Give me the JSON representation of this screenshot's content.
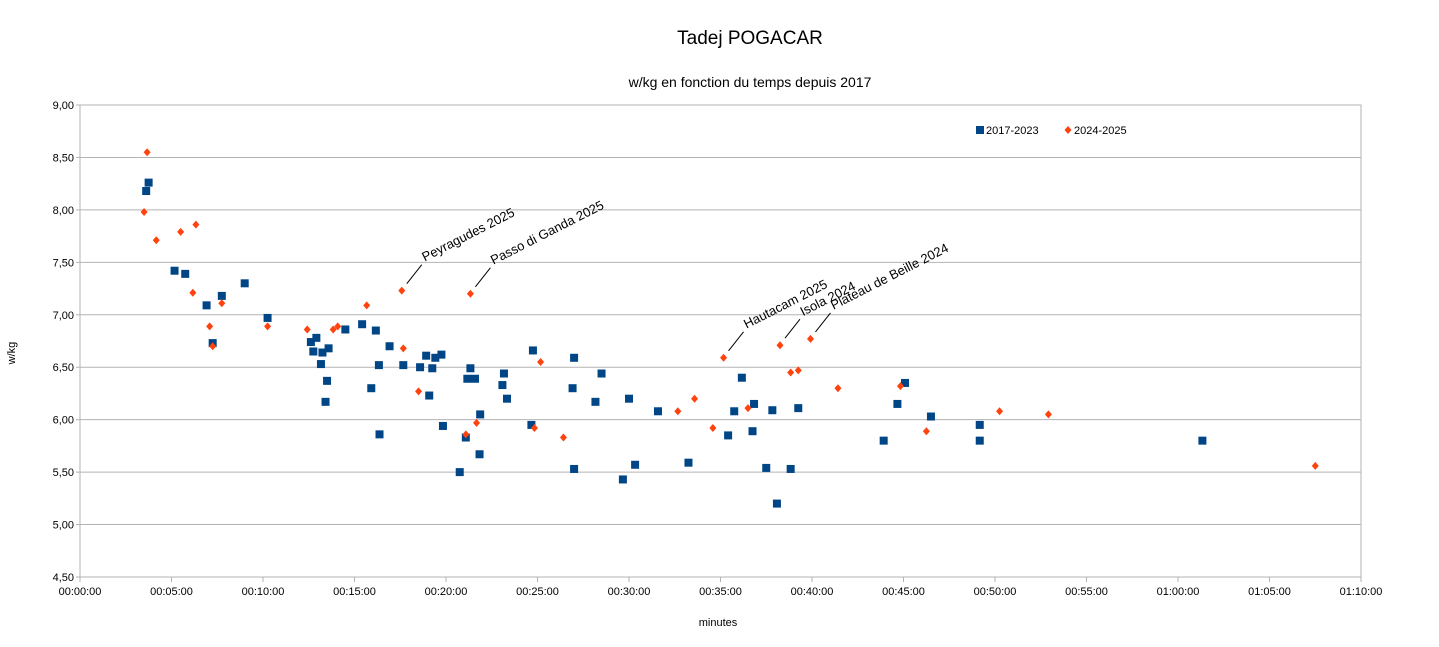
{
  "chart_data": {
    "type": "scatter",
    "title": "Tadej POGACAR",
    "subtitle": "w/kg en fonction du temps depuis 2017",
    "xlabel": "minutes",
    "ylabel": "w/kg",
    "xlim": [
      "00:00:00",
      "01:10:00"
    ],
    "ylim": [
      4.5,
      9.0
    ],
    "x_ticks": [
      "00:00:00",
      "00:05:00",
      "00:10:00",
      "00:15:00",
      "00:20:00",
      "00:25:00",
      "00:30:00",
      "00:35:00",
      "00:40:00",
      "00:45:00",
      "00:50:00",
      "00:55:00",
      "01:00:00",
      "01:05:00",
      "01:10:00"
    ],
    "y_ticks": [
      "4,50",
      "5,00",
      "5,50",
      "6,00",
      "6,50",
      "7,00",
      "7,50",
      "8,00",
      "8,50",
      "9,00"
    ],
    "grid": "horizontal",
    "legend_position": "top-right",
    "series": [
      {
        "name": "2017-2023",
        "color": "#004586",
        "marker": "square",
        "points": [
          [
            "00:03:37",
            8.18
          ],
          [
            "00:03:45",
            8.26
          ],
          [
            "00:05:10",
            7.42
          ],
          [
            "00:05:45",
            7.39
          ],
          [
            "00:06:55",
            7.09
          ],
          [
            "00:07:15",
            6.73
          ],
          [
            "00:07:45",
            7.18
          ],
          [
            "00:09:00",
            7.3
          ],
          [
            "00:10:15",
            6.97
          ],
          [
            "00:12:37",
            6.74
          ],
          [
            "00:12:45",
            6.65
          ],
          [
            "00:12:55",
            6.78
          ],
          [
            "00:13:10",
            6.53
          ],
          [
            "00:13:15",
            6.64
          ],
          [
            "00:13:25",
            6.17
          ],
          [
            "00:13:30",
            6.37
          ],
          [
            "00:13:35",
            6.68
          ],
          [
            "00:14:30",
            6.86
          ],
          [
            "00:15:25",
            6.91
          ],
          [
            "00:15:55",
            6.3
          ],
          [
            "00:16:10",
            6.85
          ],
          [
            "00:16:20",
            6.52
          ],
          [
            "00:16:22",
            5.86
          ],
          [
            "00:16:55",
            6.7
          ],
          [
            "00:17:40",
            6.52
          ],
          [
            "00:18:35",
            6.5
          ],
          [
            "00:18:55",
            6.61
          ],
          [
            "00:19:05",
            6.23
          ],
          [
            "00:19:15",
            6.49
          ],
          [
            "00:19:25",
            6.59
          ],
          [
            "00:19:45",
            6.62
          ],
          [
            "00:19:50",
            5.94
          ],
          [
            "00:20:45",
            5.5
          ],
          [
            "00:21:05",
            5.83
          ],
          [
            "00:21:10",
            6.39
          ],
          [
            "00:21:20",
            6.49
          ],
          [
            "00:21:35",
            6.39
          ],
          [
            "00:21:52",
            6.05
          ],
          [
            "00:21:50",
            5.67
          ],
          [
            "00:23:05",
            6.33
          ],
          [
            "00:23:10",
            6.44
          ],
          [
            "00:23:20",
            6.2
          ],
          [
            "00:24:40",
            5.95
          ],
          [
            "00:24:45",
            6.66
          ],
          [
            "00:26:55",
            6.3
          ],
          [
            "00:27:00",
            6.59
          ],
          [
            "00:27:00",
            5.53
          ],
          [
            "00:28:10",
            6.17
          ],
          [
            "00:28:30",
            6.44
          ],
          [
            "00:29:40",
            5.43
          ],
          [
            "00:30:00",
            6.2
          ],
          [
            "00:30:20",
            5.57
          ],
          [
            "00:31:35",
            6.08
          ],
          [
            "00:33:15",
            5.59
          ],
          [
            "00:35:25",
            5.85
          ],
          [
            "00:35:45",
            6.08
          ],
          [
            "00:36:10",
            6.4
          ],
          [
            "00:36:45",
            5.89
          ],
          [
            "00:36:50",
            6.15
          ],
          [
            "00:37:30",
            5.54
          ],
          [
            "00:37:50",
            6.09
          ],
          [
            "00:38:05",
            5.2
          ],
          [
            "00:38:50",
            5.53
          ],
          [
            "00:39:15",
            6.11
          ],
          [
            "00:43:55",
            5.8
          ],
          [
            "00:44:40",
            6.15
          ],
          [
            "00:45:05",
            6.35
          ],
          [
            "00:46:30",
            6.03
          ],
          [
            "00:49:10",
            5.95
          ],
          [
            "00:49:10",
            5.8
          ],
          [
            "01:01:20",
            5.8
          ]
        ]
      },
      {
        "name": "2024-2025",
        "color": "#ff420e",
        "marker": "diamond",
        "points": [
          [
            "00:03:30",
            7.98
          ],
          [
            "00:03:40",
            8.55
          ],
          [
            "00:04:10",
            7.71
          ],
          [
            "00:05:30",
            7.79
          ],
          [
            "00:06:10",
            7.21
          ],
          [
            "00:06:20",
            7.86
          ],
          [
            "00:07:05",
            6.89
          ],
          [
            "00:07:15",
            6.7
          ],
          [
            "00:07:45",
            7.11
          ],
          [
            "00:10:15",
            6.89
          ],
          [
            "00:12:25",
            6.86
          ],
          [
            "00:13:50",
            6.86
          ],
          [
            "00:14:05",
            6.89
          ],
          [
            "00:15:40",
            7.09
          ],
          [
            "00:17:35",
            7.23
          ],
          [
            "00:17:40",
            6.68
          ],
          [
            "00:18:30",
            6.27
          ],
          [
            "00:21:05",
            5.86
          ],
          [
            "00:21:20",
            7.2
          ],
          [
            "00:21:40",
            5.97
          ],
          [
            "00:24:50",
            5.92
          ],
          [
            "00:25:10",
            6.55
          ],
          [
            "00:26:25",
            5.83
          ],
          [
            "00:32:40",
            6.08
          ],
          [
            "00:33:35",
            6.2
          ],
          [
            "00:34:35",
            5.92
          ],
          [
            "00:35:10",
            6.59
          ],
          [
            "00:36:30",
            6.11
          ],
          [
            "00:38:15",
            6.71
          ],
          [
            "00:38:50",
            6.45
          ],
          [
            "00:39:15",
            6.47
          ],
          [
            "00:39:55",
            6.77
          ],
          [
            "00:41:25",
            6.3
          ],
          [
            "00:44:50",
            6.32
          ],
          [
            "00:46:15",
            5.89
          ],
          [
            "00:50:15",
            6.08
          ],
          [
            "00:52:55",
            6.05
          ],
          [
            "01:07:30",
            5.56
          ]
        ]
      }
    ],
    "annotations": [
      {
        "text": "Peyragudes 2025",
        "x": "00:17:35",
        "y": 7.23
      },
      {
        "text": "Passo di Ganda 2025",
        "x": "00:21:20",
        "y": 7.2
      },
      {
        "text": "Hautacam 2025",
        "x": "00:35:10",
        "y": 6.59
      },
      {
        "text": "Isola 2024",
        "x": "00:38:15",
        "y": 6.71
      },
      {
        "text": "Plateau de Beille 2024",
        "x": "00:39:55",
        "y": 6.77
      }
    ]
  }
}
